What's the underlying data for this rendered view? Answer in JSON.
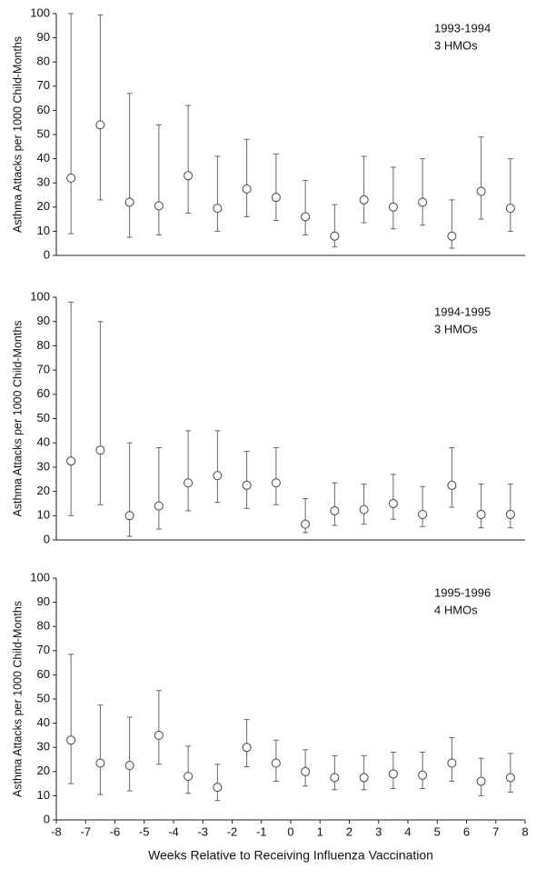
{
  "chart_data": [
    {
      "type": "errorbar",
      "annotation": [
        "1993-1994",
        "3 HMOs"
      ],
      "ylabel": "Asthma Attacks per 1000 Child-Months",
      "x": [
        -7.5,
        -6.5,
        -5.5,
        -4.5,
        -3.5,
        -2.5,
        -1.5,
        -0.5,
        0.5,
        1.5,
        2.5,
        3.5,
        4.5,
        5.5,
        6.5,
        7.5
      ],
      "values": [
        32,
        54,
        22,
        20.5,
        33,
        19.5,
        27.5,
        24,
        16,
        8,
        23,
        20,
        22,
        8,
        26.5,
        19.5
      ],
      "lower": [
        9,
        23,
        7.5,
        8.5,
        17.5,
        10,
        16,
        14.5,
        8.5,
        3.5,
        13.5,
        11,
        12.5,
        3,
        15,
        10
      ],
      "upper": [
        100,
        99.5,
        67,
        54,
        62,
        41,
        48,
        42,
        31,
        21,
        41,
        36.5,
        40,
        23,
        49,
        40
      ],
      "xlim": [
        -8,
        8
      ],
      "ylim": [
        0,
        100
      ],
      "yticks": [
        0,
        10,
        20,
        30,
        40,
        50,
        60,
        70,
        80,
        90,
        100
      ],
      "color": "#666666"
    },
    {
      "type": "errorbar",
      "annotation": [
        "1994-1995",
        "3 HMOs"
      ],
      "ylabel": "Asthma Attacks per 1000 Child-Months",
      "x": [
        -7.5,
        -6.5,
        -5.5,
        -4.5,
        -3.5,
        -2.5,
        -1.5,
        -0.5,
        0.5,
        1.5,
        2.5,
        3.5,
        4.5,
        5.5,
        6.5,
        7.5
      ],
      "values": [
        32.5,
        37,
        10,
        14,
        23.5,
        26.5,
        22.5,
        23.5,
        6.5,
        12,
        12.5,
        15,
        10.5,
        22.5,
        10.5,
        10.5
      ],
      "lower": [
        10,
        14.5,
        1.5,
        4.5,
        12,
        15.5,
        13,
        14.5,
        3,
        6,
        6.5,
        8.5,
        5.5,
        13.5,
        5,
        5
      ],
      "upper": [
        98,
        90,
        40,
        38,
        45,
        45,
        36.5,
        38,
        17,
        23.5,
        23,
        27,
        22,
        38,
        23,
        23
      ],
      "xlim": [
        -8,
        8
      ],
      "ylim": [
        0,
        100
      ],
      "yticks": [
        0,
        10,
        20,
        30,
        40,
        50,
        60,
        70,
        80,
        90,
        100
      ],
      "color": "#666666"
    },
    {
      "type": "errorbar",
      "annotation": [
        "1995-1996",
        "4 HMOs"
      ],
      "ylabel": "Asthma Attacks per 1000 Child-Months",
      "xlabel": "Weeks Relative to Receiving Influenza Vaccination",
      "x": [
        -7.5,
        -6.5,
        -5.5,
        -4.5,
        -3.5,
        -2.5,
        -1.5,
        -0.5,
        0.5,
        1.5,
        2.5,
        3.5,
        4.5,
        5.5,
        6.5,
        7.5
      ],
      "values": [
        33,
        23.5,
        22.5,
        35,
        18,
        13.5,
        30,
        23.5,
        20,
        17.5,
        17.5,
        19,
        18.5,
        23.5,
        16,
        17.5
      ],
      "lower": [
        15,
        10.5,
        12,
        23,
        11,
        8,
        22,
        16,
        14,
        12.5,
        12.5,
        13,
        13,
        16,
        10,
        11.5
      ],
      "upper": [
        68.5,
        47.5,
        42.5,
        53.5,
        30.5,
        23,
        41.5,
        33,
        29,
        26.5,
        26.5,
        28,
        28,
        34,
        25.5,
        27.5
      ],
      "xlim": [
        -8,
        8
      ],
      "ylim": [
        0,
        100
      ],
      "yticks": [
        0,
        10,
        20,
        30,
        40,
        50,
        60,
        70,
        80,
        90,
        100
      ],
      "xticks": [
        -8,
        -7,
        -6,
        -5,
        -4,
        -3,
        -2,
        -1,
        0,
        1,
        2,
        3,
        4,
        5,
        6,
        7,
        8
      ],
      "color": "#666666"
    }
  ]
}
